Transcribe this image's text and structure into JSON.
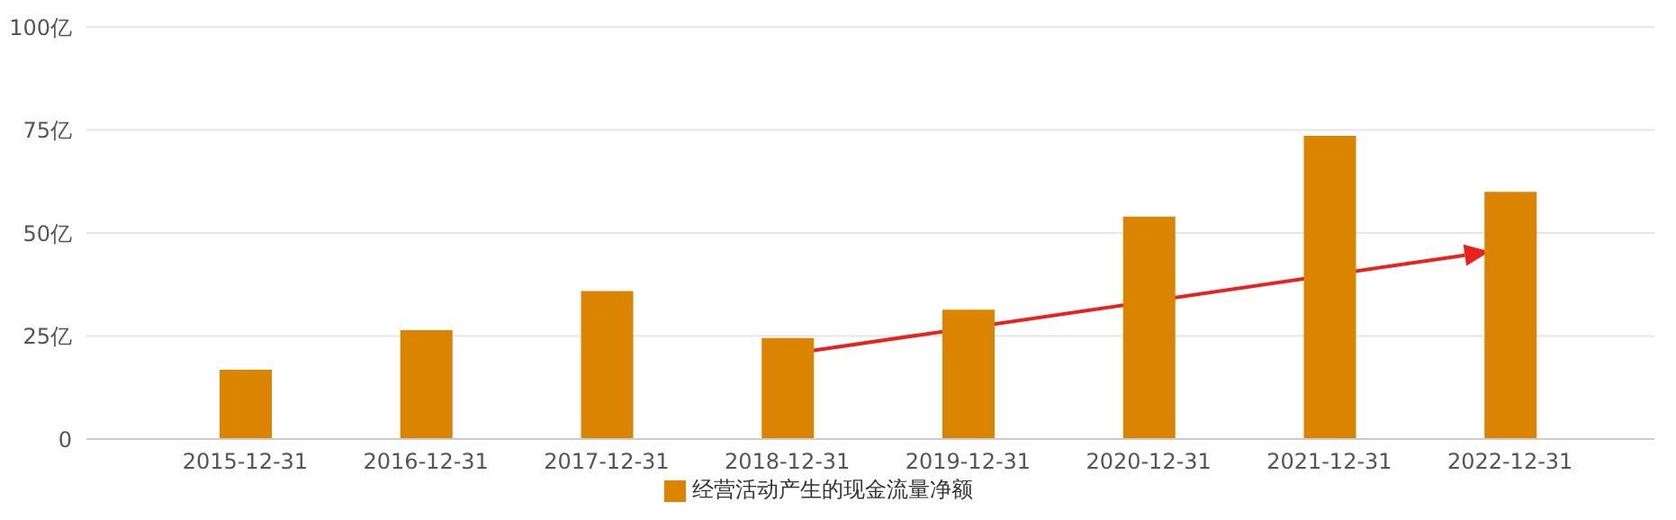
{
  "chart_data": {
    "type": "bar",
    "categories": [
      "2015-12-31",
      "2016-12-31",
      "2017-12-31",
      "2018-12-31",
      "2019-12-31",
      "2020-12-31",
      "2021-12-31",
      "2022-12-31"
    ],
    "series": [
      {
        "name": "经营活动产生的现金流量净额",
        "color": "#db8400",
        "values": [
          16.8,
          26.4,
          35.9,
          24.5,
          31.4,
          54,
          73.6,
          60
        ]
      }
    ],
    "ylim": [
      0,
      100
    ],
    "yticks": [
      0,
      {
        "value": 25,
        "label": "25亿"
      },
      {
        "value": 50,
        "label": "50亿"
      },
      {
        "value": 75,
        "label": "75亿"
      },
      {
        "value": 100,
        "label": "100亿"
      }
    ],
    "grid": "y",
    "legend": "bottom"
  }
}
